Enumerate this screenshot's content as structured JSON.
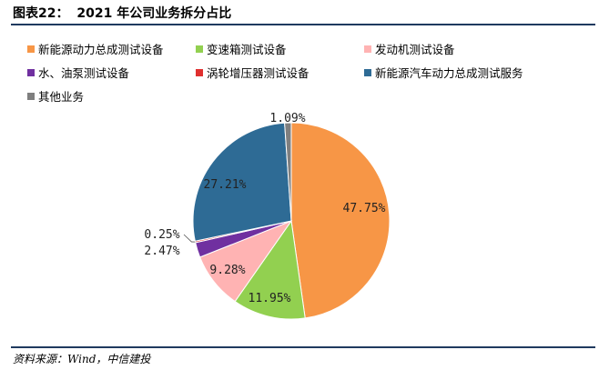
{
  "header": {
    "figure_no": "图表22：",
    "title": "2021 年公司业务拆分占比"
  },
  "source": "资料来源：Wind，中信建投",
  "chart_data": {
    "type": "pie",
    "title": "2021 年公司业务拆分占比",
    "legend_position": "top",
    "start_angle_deg": 0,
    "direction": "clockwise",
    "series": [
      {
        "name": "新能源动力总成测试设备",
        "value": 47.75,
        "label": "47.75%",
        "color": "#f79646"
      },
      {
        "name": "变速箱测试设备",
        "value": 11.95,
        "label": "11.95%",
        "color": "#92d050"
      },
      {
        "name": "发动机测试设备",
        "value": 9.28,
        "label": "9.28%",
        "color": "#ffb3b3"
      },
      {
        "name": "水、油泵测试设备",
        "value": 2.47,
        "label": "2.47%",
        "color": "#7030a0"
      },
      {
        "name": "涡轮增压器测试设备",
        "value": 0.25,
        "label": "0.25%",
        "color": "#e0302f"
      },
      {
        "name": "新能源汽车动力总成测试服务",
        "value": 27.21,
        "label": "27.21%",
        "color": "#2e6b95"
      },
      {
        "name": "其他业务",
        "value": 1.09,
        "label": "1.09%",
        "color": "#7f7f7f"
      }
    ]
  }
}
